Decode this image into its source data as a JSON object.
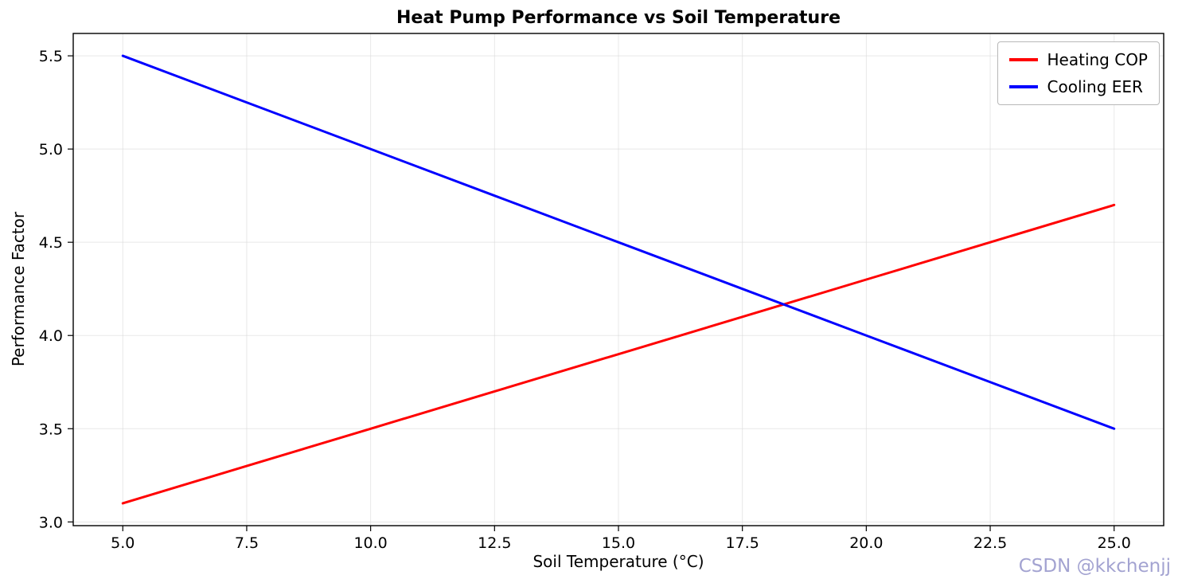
{
  "title": "Heat Pump Performance vs Soil Temperature",
  "watermark": "CSDN @kkchenjj",
  "chart_data": {
    "type": "line",
    "title": "Heat Pump Performance vs Soil Temperature",
    "xlabel": "Soil Temperature (°C)",
    "ylabel": "Performance Factor",
    "x": [
      5.0,
      7.5,
      10.0,
      12.5,
      15.0,
      17.5,
      20.0,
      22.5,
      25.0
    ],
    "series": [
      {
        "name": "Heating COP",
        "color": "#ff0000",
        "values": [
          3.1,
          3.3,
          3.5,
          3.7,
          3.9,
          4.1,
          4.3,
          4.5,
          4.7
        ]
      },
      {
        "name": "Cooling EER",
        "color": "#0000ff",
        "values": [
          5.5,
          5.25,
          5.0,
          4.75,
          4.5,
          4.25,
          4.0,
          3.75,
          3.5
        ]
      }
    ],
    "xticks": [
      5.0,
      7.5,
      10.0,
      12.5,
      15.0,
      17.5,
      20.0,
      22.5,
      25.0
    ],
    "yticks": [
      3.0,
      3.5,
      4.0,
      4.5,
      5.0,
      5.5
    ],
    "xlim": [
      4,
      26
    ],
    "ylim": [
      2.98,
      5.62
    ],
    "grid": true,
    "grid_color": "#d9d9d9",
    "legend_position": "upper right",
    "line_width": 3
  }
}
